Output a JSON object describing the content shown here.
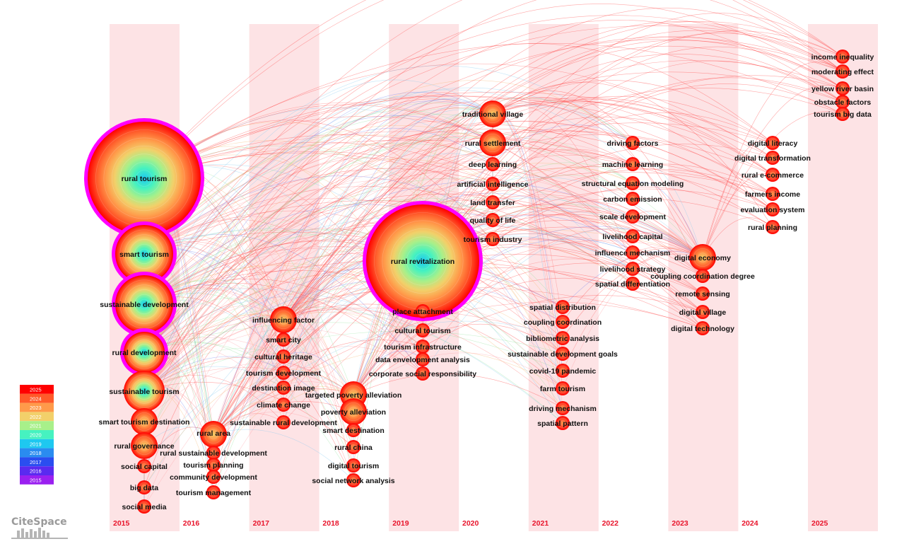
{
  "brand": "CiteSpace",
  "years": [
    "2015",
    "2016",
    "2017",
    "2018",
    "2019",
    "2020",
    "2021",
    "2022",
    "2023",
    "2024",
    "2025"
  ],
  "legend": {
    "years": [
      "2025",
      "2024",
      "2023",
      "2022",
      "2021",
      "2020",
      "2019",
      "2018",
      "2017",
      "2016",
      "2015"
    ],
    "colors": [
      "#ff0000",
      "#ff5a2a",
      "#ff9a4a",
      "#f2d06a",
      "#a8f08a",
      "#46f2c0",
      "#1ec8f0",
      "#2a8cf0",
      "#2a4ef0",
      "#5a2af0",
      "#9a20f0"
    ]
  },
  "nodes": [
    {
      "label": "rural tourism",
      "year": "2015",
      "size": "xl",
      "burst": true
    },
    {
      "label": "smart tourism",
      "year": "2015",
      "size": "l",
      "burst": true
    },
    {
      "label": "sustainable development",
      "year": "2015",
      "size": "l",
      "burst": true
    },
    {
      "label": "rural development",
      "year": "2015",
      "size": "m",
      "burst": true
    },
    {
      "label": "sustainable tourism",
      "year": "2015",
      "size": "m",
      "burst": false
    },
    {
      "label": "smart tourism destination",
      "year": "2015",
      "size": "s",
      "burst": false
    },
    {
      "label": "rural governance",
      "year": "2015",
      "size": "s",
      "burst": false
    },
    {
      "label": "social capital",
      "year": "2015",
      "size": "xs",
      "burst": false
    },
    {
      "label": "big data",
      "year": "2015",
      "size": "xs",
      "burst": false
    },
    {
      "label": "social media",
      "year": "2015",
      "size": "xs",
      "burst": false
    },
    {
      "label": "rural area",
      "year": "2016",
      "size": "s",
      "burst": false
    },
    {
      "label": "rural sustainable development",
      "year": "2016",
      "size": "xs",
      "burst": false
    },
    {
      "label": "tourism planning",
      "year": "2016",
      "size": "xs",
      "burst": false
    },
    {
      "label": "community development",
      "year": "2016",
      "size": "xs",
      "burst": false
    },
    {
      "label": "tourism management",
      "year": "2016",
      "size": "xs",
      "burst": false
    },
    {
      "label": "influencing factor",
      "year": "2017",
      "size": "s",
      "burst": false
    },
    {
      "label": "smart city",
      "year": "2017",
      "size": "xs",
      "burst": false
    },
    {
      "label": "cultural heritage",
      "year": "2017",
      "size": "xs",
      "burst": false
    },
    {
      "label": "tourism development",
      "year": "2017",
      "size": "xs",
      "burst": false
    },
    {
      "label": "destination image",
      "year": "2017",
      "size": "xs",
      "burst": false
    },
    {
      "label": "climate change",
      "year": "2017",
      "size": "xs",
      "burst": false
    },
    {
      "label": "sustainable rural development",
      "year": "2017",
      "size": "xs",
      "burst": false
    },
    {
      "label": "targeted poverty alleviation",
      "year": "2018",
      "size": "s",
      "burst": false
    },
    {
      "label": "poverty alleviation",
      "year": "2018",
      "size": "s",
      "burst": false
    },
    {
      "label": "smart destination",
      "year": "2018",
      "size": "xs",
      "burst": false
    },
    {
      "label": "rural china",
      "year": "2018",
      "size": "xs",
      "burst": false
    },
    {
      "label": "digital tourism",
      "year": "2018",
      "size": "xs",
      "burst": false
    },
    {
      "label": "social network analysis",
      "year": "2018",
      "size": "xs",
      "burst": false
    },
    {
      "label": "rural revitalization",
      "year": "2019",
      "size": "xl",
      "burst": true
    },
    {
      "label": "place attachment",
      "year": "2019",
      "size": "xs",
      "burst": false
    },
    {
      "label": "cultural tourism",
      "year": "2019",
      "size": "xs",
      "burst": false
    },
    {
      "label": "tourism infrastructure",
      "year": "2019",
      "size": "xs",
      "burst": false
    },
    {
      "label": "data envelopment analysis",
      "year": "2019",
      "size": "xs",
      "burst": false
    },
    {
      "label": "corporate social responsibility",
      "year": "2019",
      "size": "xs",
      "burst": false
    },
    {
      "label": "traditional village",
      "year": "2020",
      "size": "s",
      "burst": false
    },
    {
      "label": "rural settlement",
      "year": "2020",
      "size": "s",
      "burst": false
    },
    {
      "label": "deep learning",
      "year": "2020",
      "size": "xs",
      "burst": false
    },
    {
      "label": "artificial intelligence",
      "year": "2020",
      "size": "xs",
      "burst": false
    },
    {
      "label": "land transfer",
      "year": "2020",
      "size": "xs",
      "burst": false
    },
    {
      "label": "quality of life",
      "year": "2020",
      "size": "xs",
      "burst": false
    },
    {
      "label": "tourism industry",
      "year": "2020",
      "size": "xs",
      "burst": false
    },
    {
      "label": "spatial distribution",
      "year": "2021",
      "size": "xs",
      "burst": false
    },
    {
      "label": "coupling coordination",
      "year": "2021",
      "size": "xs",
      "burst": false
    },
    {
      "label": "bibliometric analysis",
      "year": "2021",
      "size": "xs",
      "burst": false
    },
    {
      "label": "sustainable development goals",
      "year": "2021",
      "size": "xs",
      "burst": false
    },
    {
      "label": "covid-19 pandemic",
      "year": "2021",
      "size": "xs",
      "burst": false
    },
    {
      "label": "farm tourism",
      "year": "2021",
      "size": "xs",
      "burst": false
    },
    {
      "label": "driving mechanism",
      "year": "2021",
      "size": "xs",
      "burst": false
    },
    {
      "label": "spatial pattern",
      "year": "2021",
      "size": "xs",
      "burst": false
    },
    {
      "label": "driving factors",
      "year": "2022",
      "size": "xs",
      "burst": false
    },
    {
      "label": "machine learning",
      "year": "2022",
      "size": "xs",
      "burst": false
    },
    {
      "label": "structural equation modeling",
      "year": "2022",
      "size": "xs",
      "burst": false
    },
    {
      "label": "carbon emission",
      "year": "2022",
      "size": "xs",
      "burst": false
    },
    {
      "label": "scale development",
      "year": "2022",
      "size": "xs",
      "burst": false
    },
    {
      "label": "livelihood capital",
      "year": "2022",
      "size": "xs",
      "burst": false
    },
    {
      "label": "influence mechanism",
      "year": "2022",
      "size": "xs",
      "burst": false
    },
    {
      "label": "livelihood strategy",
      "year": "2022",
      "size": "xs",
      "burst": false
    },
    {
      "label": "spatial differentiation",
      "year": "2022",
      "size": "xs",
      "burst": false
    },
    {
      "label": "digital economy",
      "year": "2023",
      "size": "s",
      "burst": false
    },
    {
      "label": "coupling coordination degree",
      "year": "2023",
      "size": "xs",
      "burst": false
    },
    {
      "label": "remote sensing",
      "year": "2023",
      "size": "xs",
      "burst": false
    },
    {
      "label": "digital village",
      "year": "2023",
      "size": "xs",
      "burst": false
    },
    {
      "label": "digital technology",
      "year": "2023",
      "size": "xs",
      "burst": false
    },
    {
      "label": "digital literacy",
      "year": "2024",
      "size": "xs",
      "burst": false
    },
    {
      "label": "digital transformation",
      "year": "2024",
      "size": "xs",
      "burst": false
    },
    {
      "label": "rural e-commerce",
      "year": "2024",
      "size": "xs",
      "burst": false
    },
    {
      "label": "farmers income",
      "year": "2024",
      "size": "xs",
      "burst": false
    },
    {
      "label": "evaluation system",
      "year": "2024",
      "size": "xs",
      "burst": false
    },
    {
      "label": "rural planning",
      "year": "2024",
      "size": "xs",
      "burst": false
    },
    {
      "label": "income inequality",
      "year": "2025",
      "size": "xs",
      "burst": false
    },
    {
      "label": "moderating effect",
      "year": "2025",
      "size": "xs",
      "burst": false
    },
    {
      "label": "yellow river basin",
      "year": "2025",
      "size": "xs",
      "burst": false
    },
    {
      "label": "obstacle factors",
      "year": "2025",
      "size": "xs",
      "burst": false
    },
    {
      "label": "tourism big data",
      "year": "2025",
      "size": "xs",
      "burst": false
    }
  ]
}
